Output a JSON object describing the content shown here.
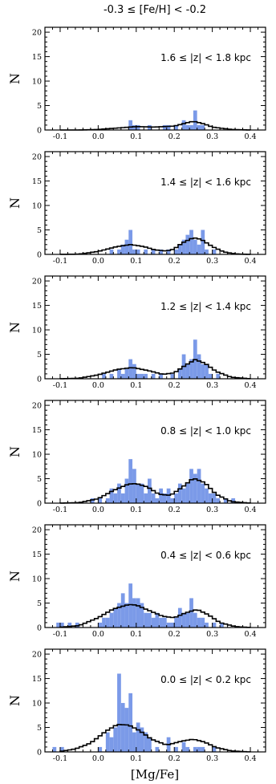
{
  "figure": {
    "title": "-0.3 ≤ [Fe/H] <  -0.2",
    "xlabel": "[Mg/Fe]",
    "ylabel": "N",
    "bar_color": "#7b9ae8",
    "line_color": "#000000"
  },
  "chart_data": [
    {
      "type": "bar",
      "label": "1.6 ≤ |z| < 1.8 kpc",
      "xlim": [
        -0.14,
        0.44
      ],
      "ylim": [
        0,
        21
      ],
      "xticks": [
        -0.1,
        0.0,
        0.1,
        0.2,
        0.3,
        0.4
      ],
      "yticks": [
        0,
        5,
        10,
        15,
        20
      ],
      "bin_width": 0.01,
      "histogram": {
        "bin_centers": [
          0.085,
          0.095,
          0.105,
          0.135,
          0.175,
          0.185,
          0.205,
          0.225,
          0.235,
          0.245,
          0.255,
          0.265,
          0.275
        ],
        "counts": [
          2,
          1,
          1,
          1,
          1,
          1,
          1,
          2,
          1,
          1,
          4,
          1,
          1
        ]
      },
      "model_curve": {
        "x": [
          -0.1,
          -0.05,
          0.0,
          0.05,
          0.1,
          0.15,
          0.2,
          0.22,
          0.25,
          0.28,
          0.3,
          0.35,
          0.4
        ],
        "y": [
          0,
          0,
          0.1,
          0.4,
          0.7,
          0.6,
          0.8,
          1.2,
          1.8,
          1.2,
          0.6,
          0.1,
          0
        ]
      }
    },
    {
      "type": "bar",
      "label": "1.4 ≤ |z| < 1.6 kpc",
      "xlim": [
        -0.14,
        0.44
      ],
      "ylim": [
        0,
        21
      ],
      "xticks": [
        -0.1,
        0.0,
        0.1,
        0.2,
        0.3,
        0.4
      ],
      "yticks": [
        0,
        5,
        10,
        15,
        20
      ],
      "bin_width": 0.01,
      "histogram": {
        "bin_centers": [
          0.035,
          0.055,
          0.065,
          0.075,
          0.085,
          0.095,
          0.105,
          0.125,
          0.145,
          0.165,
          0.185,
          0.205,
          0.215,
          0.225,
          0.235,
          0.245,
          0.255,
          0.265,
          0.275,
          0.285,
          0.305
        ],
        "counts": [
          1,
          1,
          2,
          3,
          5,
          1,
          1,
          1,
          1,
          1,
          1,
          1,
          2,
          3,
          4,
          5,
          3,
          2,
          5,
          1,
          1
        ]
      },
      "model_curve": {
        "x": [
          -0.1,
          -0.05,
          0.0,
          0.05,
          0.085,
          0.12,
          0.15,
          0.18,
          0.2,
          0.22,
          0.25,
          0.27,
          0.3,
          0.33,
          0.36,
          0.4
        ],
        "y": [
          0,
          0.05,
          0.6,
          1.6,
          2.0,
          1.6,
          0.9,
          0.7,
          1.1,
          2.3,
          3.4,
          3.1,
          1.6,
          0.5,
          0.1,
          0
        ]
      }
    },
    {
      "type": "bar",
      "label": "1.2 ≤ |z| < 1.4 kpc",
      "xlim": [
        -0.14,
        0.44
      ],
      "ylim": [
        0,
        21
      ],
      "xticks": [
        -0.1,
        0.0,
        0.1,
        0.2,
        0.3,
        0.4
      ],
      "yticks": [
        0,
        5,
        10,
        15,
        20
      ],
      "bin_width": 0.01,
      "histogram": {
        "bin_centers": [
          0.015,
          0.035,
          0.055,
          0.065,
          0.075,
          0.085,
          0.095,
          0.105,
          0.115,
          0.125,
          0.145,
          0.165,
          0.195,
          0.215,
          0.225,
          0.235,
          0.245,
          0.255,
          0.265,
          0.275,
          0.285,
          0.295,
          0.315
        ],
        "counts": [
          1,
          1,
          2,
          1,
          2,
          4,
          3,
          1,
          1,
          1,
          1,
          1,
          1,
          2,
          5,
          3,
          4,
          8,
          5,
          3,
          3,
          1,
          1
        ]
      },
      "model_curve": {
        "x": [
          -0.1,
          -0.05,
          0.0,
          0.05,
          0.09,
          0.13,
          0.17,
          0.2,
          0.23,
          0.255,
          0.28,
          0.31,
          0.35,
          0.4
        ],
        "y": [
          0,
          0.1,
          0.8,
          1.9,
          2.3,
          1.7,
          0.9,
          1.2,
          2.8,
          3.9,
          3.2,
          1.5,
          0.3,
          0
        ]
      }
    },
    {
      "type": "bar",
      "label": "0.8 ≤ |z| < 1.0 kpc",
      "xlim": [
        -0.14,
        0.44
      ],
      "ylim": [
        0,
        21
      ],
      "xticks": [
        -0.1,
        0.0,
        0.1,
        0.2,
        0.3,
        0.4
      ],
      "yticks": [
        0,
        5,
        10,
        15,
        20
      ],
      "bin_width": 0.01,
      "histogram": {
        "bin_centers": [
          -0.015,
          0.005,
          0.025,
          0.035,
          0.045,
          0.055,
          0.065,
          0.075,
          0.085,
          0.095,
          0.105,
          0.115,
          0.125,
          0.135,
          0.145,
          0.155,
          0.165,
          0.175,
          0.185,
          0.195,
          0.205,
          0.215,
          0.225,
          0.235,
          0.245,
          0.255,
          0.265,
          0.275,
          0.285,
          0.295,
          0.305,
          0.315,
          0.335,
          0.355
        ],
        "counts": [
          1,
          1,
          1,
          3,
          2,
          4,
          2,
          5,
          9,
          7,
          4,
          4,
          2,
          5,
          2,
          1,
          3,
          2,
          3,
          1,
          2,
          4,
          3,
          4,
          7,
          6,
          7,
          4,
          3,
          2,
          2,
          1,
          1,
          1
        ]
      },
      "model_curve": {
        "x": [
          -0.1,
          -0.05,
          0.0,
          0.04,
          0.08,
          0.1,
          0.13,
          0.16,
          0.19,
          0.22,
          0.25,
          0.28,
          0.31,
          0.35,
          0.4
        ],
        "y": [
          0,
          0.1,
          0.9,
          2.6,
          3.9,
          4.0,
          3.3,
          1.8,
          1.6,
          3.2,
          5.1,
          4.2,
          1.8,
          0.3,
          0
        ]
      }
    },
    {
      "type": "bar",
      "label": "0.4 ≤ |z| < 0.6 kpc",
      "xlim": [
        -0.14,
        0.44
      ],
      "ylim": [
        0,
        21
      ],
      "xticks": [
        -0.1,
        0.0,
        0.1,
        0.2,
        0.3,
        0.4
      ],
      "yticks": [
        0,
        5,
        10,
        15,
        20
      ],
      "bin_width": 0.01,
      "histogram": {
        "bin_centers": [
          -0.105,
          -0.095,
          -0.075,
          -0.055,
          0.005,
          0.015,
          0.025,
          0.035,
          0.045,
          0.055,
          0.065,
          0.075,
          0.085,
          0.095,
          0.105,
          0.115,
          0.125,
          0.135,
          0.145,
          0.155,
          0.165,
          0.175,
          0.185,
          0.195,
          0.205,
          0.215,
          0.225,
          0.235,
          0.245,
          0.255,
          0.265,
          0.275,
          0.285,
          0.305,
          0.325
        ],
        "counts": [
          1,
          1,
          1,
          1,
          1,
          2,
          2,
          3,
          4,
          5,
          7,
          5,
          9,
          6,
          6,
          5,
          3,
          3,
          2,
          3,
          2,
          2,
          1,
          1,
          2,
          4,
          3,
          3,
          6,
          3,
          2,
          2,
          1,
          1,
          1
        ]
      },
      "model_curve": {
        "x": [
          -0.1,
          -0.05,
          0.0,
          0.04,
          0.08,
          0.1,
          0.13,
          0.17,
          0.2,
          0.23,
          0.26,
          0.29,
          0.32,
          0.36,
          0.4
        ],
        "y": [
          0.05,
          0.4,
          2.0,
          3.8,
          4.7,
          4.6,
          3.6,
          2.3,
          2.0,
          3.0,
          3.7,
          2.6,
          1.0,
          0.2,
          0
        ]
      }
    },
    {
      "type": "bar",
      "label": "0.0 ≤ |z| < 0.2 kpc",
      "xlim": [
        -0.14,
        0.44
      ],
      "ylim": [
        0,
        21
      ],
      "xticks": [
        -0.1,
        0.0,
        0.1,
        0.2,
        0.3,
        0.4
      ],
      "yticks": [
        0,
        5,
        10,
        15,
        20
      ],
      "bin_width": 0.01,
      "histogram": {
        "bin_centers": [
          -0.115,
          -0.095,
          0.005,
          0.025,
          0.035,
          0.045,
          0.055,
          0.065,
          0.075,
          0.085,
          0.095,
          0.105,
          0.115,
          0.125,
          0.135,
          0.155,
          0.185,
          0.205,
          0.225,
          0.235,
          0.255,
          0.265,
          0.275,
          0.305
        ],
        "counts": [
          1,
          1,
          1,
          4,
          3,
          5,
          16,
          10,
          9,
          12,
          4,
          6,
          5,
          4,
          3,
          1,
          3,
          1,
          2,
          1,
          1,
          1,
          1,
          1
        ]
      },
      "model_curve": {
        "x": [
          -0.1,
          -0.06,
          -0.02,
          0.02,
          0.05,
          0.08,
          0.11,
          0.14,
          0.18,
          0.22,
          0.25,
          0.28,
          0.31,
          0.35,
          0.4
        ],
        "y": [
          0.1,
          0.6,
          1.8,
          4.2,
          5.6,
          5.5,
          4.3,
          2.6,
          1.4,
          2.2,
          2.6,
          2.0,
          0.9,
          0.2,
          0
        ]
      }
    }
  ]
}
